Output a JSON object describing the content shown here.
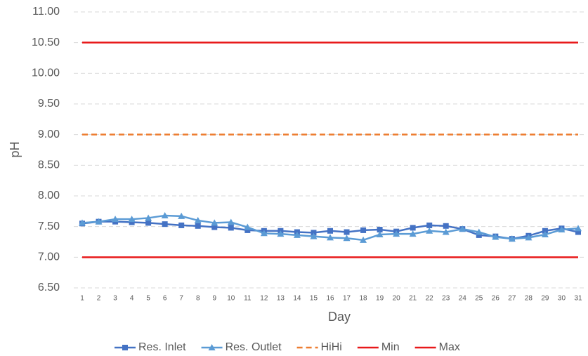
{
  "chart_data": {
    "type": "line",
    "xlabel": "Day",
    "ylabel": "pH",
    "categories": [
      "1",
      "2",
      "3",
      "4",
      "5",
      "6",
      "7",
      "8",
      "9",
      "10",
      "11",
      "12",
      "13",
      "14",
      "15",
      "16",
      "17",
      "18",
      "19",
      "20",
      "21",
      "22",
      "23",
      "24",
      "25",
      "26",
      "27",
      "28",
      "29",
      "30",
      "31"
    ],
    "ylim": [
      6.5,
      11
    ],
    "yticks": [
      {
        "value": 6.5,
        "label": "6.50"
      },
      {
        "value": 7,
        "label": "7.00"
      },
      {
        "value": 7.5,
        "label": "7.50"
      },
      {
        "value": 8,
        "label": "8.00"
      },
      {
        "value": 8.5,
        "label": "8.50"
      },
      {
        "value": 9,
        "label": "9.00"
      },
      {
        "value": 9.5,
        "label": "9.50"
      },
      {
        "value": 10,
        "label": "10.00"
      },
      {
        "value": 10.5,
        "label": "10.50"
      },
      {
        "value": 11,
        "label": "11.00"
      }
    ],
    "grid": true,
    "legend": "bottom",
    "series": [
      {
        "name": "Res. Inlet",
        "color": "#4472c4",
        "marker": "square",
        "style": "solid",
        "values": [
          7.55,
          7.58,
          7.58,
          7.57,
          7.56,
          7.54,
          7.52,
          7.51,
          7.49,
          7.48,
          7.44,
          7.43,
          7.43,
          7.41,
          7.4,
          7.43,
          7.41,
          7.44,
          7.45,
          7.42,
          7.48,
          7.52,
          7.51,
          7.46,
          7.36,
          7.34,
          7.3,
          7.35,
          7.43,
          7.47,
          7.41
        ]
      },
      {
        "name": "Res. Outlet",
        "color": "#5b9bd5",
        "marker": "triangle",
        "style": "solid",
        "values": [
          7.56,
          7.58,
          7.62,
          7.62,
          7.64,
          7.68,
          7.67,
          7.6,
          7.56,
          7.57,
          7.49,
          7.39,
          7.38,
          7.36,
          7.34,
          7.32,
          7.31,
          7.28,
          7.37,
          7.38,
          7.38,
          7.43,
          7.41,
          7.46,
          7.41,
          7.33,
          7.3,
          7.32,
          7.37,
          7.45,
          7.47
        ]
      },
      {
        "name": "HiHi",
        "color": "#ed7d31",
        "marker": null,
        "style": "dashed",
        "values": [
          9,
          9,
          9,
          9,
          9,
          9,
          9,
          9,
          9,
          9,
          9,
          9,
          9,
          9,
          9,
          9,
          9,
          9,
          9,
          9,
          9,
          9,
          9,
          9,
          9,
          9,
          9,
          9,
          9,
          9,
          9
        ]
      },
      {
        "name": "Min",
        "color": "#e8191a",
        "marker": null,
        "style": "solid",
        "values": [
          7,
          7,
          7,
          7,
          7,
          7,
          7,
          7,
          7,
          7,
          7,
          7,
          7,
          7,
          7,
          7,
          7,
          7,
          7,
          7,
          7,
          7,
          7,
          7,
          7,
          7,
          7,
          7,
          7,
          7,
          7
        ]
      },
      {
        "name": "Max",
        "color": "#e8191a",
        "marker": null,
        "style": "solid",
        "values": [
          10.5,
          10.5,
          10.5,
          10.5,
          10.5,
          10.5,
          10.5,
          10.5,
          10.5,
          10.5,
          10.5,
          10.5,
          10.5,
          10.5,
          10.5,
          10.5,
          10.5,
          10.5,
          10.5,
          10.5,
          10.5,
          10.5,
          10.5,
          10.5,
          10.5,
          10.5,
          10.5,
          10.5,
          10.5,
          10.5,
          10.5
        ]
      }
    ]
  }
}
